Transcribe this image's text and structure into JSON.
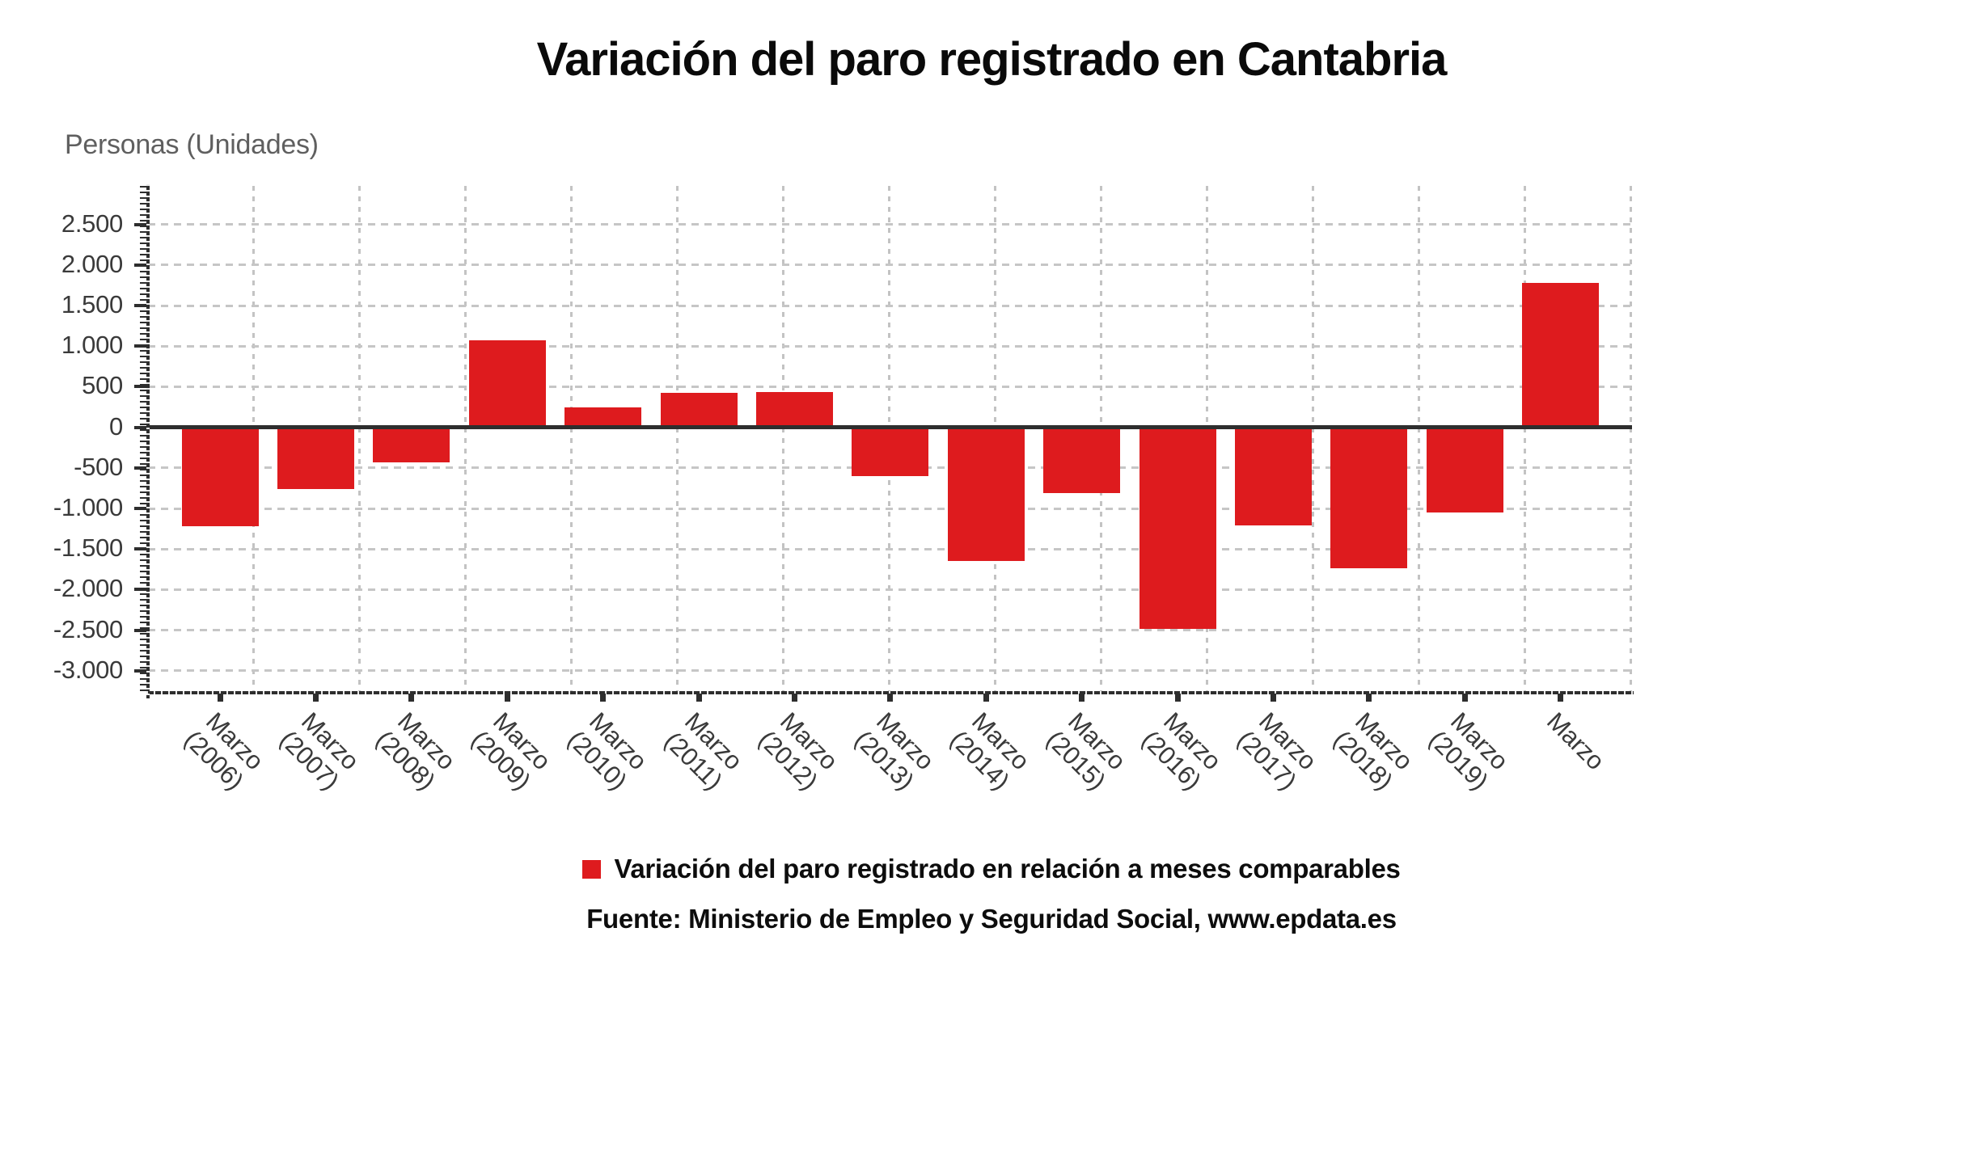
{
  "title": "Variación del paro registrado en Cantabria",
  "y_axis_title": "Personas (Unidades)",
  "source_line": "Fuente: Ministerio de Empleo y Seguridad Social, www.epdata.es",
  "colors": {
    "bar": "#de1b1e",
    "axis": "#2e2e2e",
    "zero_line": "#2e2e2e",
    "gridline": "#c6c6c6",
    "tick_label": "#3a3a3a",
    "axis_title": "#5f5f5f",
    "text": "#0d0d0d",
    "background": "#ffffff"
  },
  "chart_data": {
    "type": "bar",
    "title": "Variación del paro registrado en Cantabria",
    "xlabel": "",
    "ylabel": "Personas (Unidades)",
    "categories": [
      "Marzo (2006)",
      "Marzo (2007)",
      "Marzo (2008)",
      "Marzo (2009)",
      "Marzo (2010)",
      "Marzo (2011)",
      "Marzo (2012)",
      "Marzo (2013)",
      "Marzo (2014)",
      "Marzo (2015)",
      "Marzo (2016)",
      "Marzo (2017)",
      "Marzo (2018)",
      "Marzo (2019)",
      "Marzo"
    ],
    "x_tick_lines": [
      [
        "Marzo",
        "(2006)"
      ],
      [
        "Marzo",
        "(2007)"
      ],
      [
        "Marzo",
        "(2008)"
      ],
      [
        "Marzo",
        "(2009)"
      ],
      [
        "Marzo",
        "(2010)"
      ],
      [
        "Marzo",
        "(2011)"
      ],
      [
        "Marzo",
        "(2012)"
      ],
      [
        "Marzo",
        "(2013)"
      ],
      [
        "Marzo",
        "(2014)"
      ],
      [
        "Marzo",
        "(2015)"
      ],
      [
        "Marzo",
        "(2016)"
      ],
      [
        "Marzo",
        "(2017)"
      ],
      [
        "Marzo",
        "(2018)"
      ],
      [
        "Marzo",
        "(2019)"
      ],
      [
        "Marzo",
        ""
      ]
    ],
    "series": [
      {
        "name": "Variación del paro registrado en relación a meses comparables",
        "color": "#de1b1e",
        "values": [
          -1220,
          -760,
          -430,
          1070,
          245,
          425,
          430,
          -600,
          -1650,
          -810,
          -2480,
          -1210,
          -1740,
          -1050,
          1780
        ]
      }
    ],
    "y_ticks": [
      2500,
      2000,
      1500,
      1000,
      500,
      0,
      -500,
      -1000,
      -1500,
      -2000,
      -2500,
      -3000
    ],
    "y_tick_labels": [
      "2.500",
      "2.000",
      "1.500",
      "1.000",
      "500",
      "0",
      "-500",
      "-1.000",
      "-1.500",
      "-2.000",
      "-2.500",
      "-3.000"
    ],
    "ylim": [
      -3270,
      2975
    ],
    "grid": true,
    "gridline_style": "dashed",
    "legend_position": "bottom"
  }
}
